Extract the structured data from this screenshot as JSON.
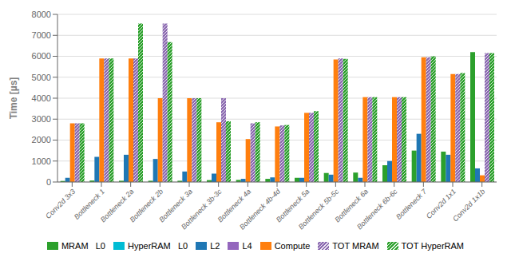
{
  "chart_data": {
    "type": "bar",
    "categories": [
      "Conv2d 3x3",
      "Bottleneck 1",
      "Bottleneck 2a",
      "Bottleneck 2b",
      "Bottleneck 3a",
      "Bottleneck 3b-3c",
      "Bottleneck 4a",
      "Bottleneck 4b-4d",
      "Bottleneck 5a",
      "Bottleneck 5b-5c",
      "Bottleneck 6a",
      "Bottleneck 6b-6c",
      "Bottleneck 7",
      "Conv2d 1x1",
      "Conv2d 1x1b"
    ],
    "series": [
      {
        "name": "MRAM   L0",
        "color": "#2ca02c",
        "values": [
          50,
          70,
          60,
          60,
          60,
          90,
          100,
          150,
          200,
          430,
          450,
          800,
          1500,
          1450,
          6200
        ]
      },
      {
        "name": "HyperRAM   L0",
        "color": "#00bcd4",
        "values": [
          null,
          null,
          null,
          null,
          null,
          null,
          null,
          null,
          null,
          null,
          null,
          null,
          null,
          null,
          null
        ]
      },
      {
        "name": "L2",
        "color": "#1f77b4",
        "values": [
          200,
          1200,
          1300,
          1100,
          500,
          400,
          150,
          220,
          200,
          350,
          200,
          1000,
          2300,
          1300,
          650
        ]
      },
      {
        "name": "L4",
        "color": "#9467bd",
        "values": [
          null,
          null,
          null,
          null,
          null,
          null,
          null,
          null,
          null,
          null,
          null,
          null,
          null,
          null,
          null
        ]
      },
      {
        "name": "Compute",
        "color": "#ff7f0e",
        "values": [
          2800,
          5900,
          5900,
          4000,
          4000,
          2850,
          2050,
          2650,
          3300,
          5850,
          4050,
          4050,
          5950,
          5150,
          320
        ]
      },
      {
        "name": "TOT MRAM",
        "color": "#8c6bb1",
        "line_style": "hatch",
        "values": [
          2800,
          5900,
          5900,
          7560,
          4000,
          4000,
          2800,
          2700,
          3300,
          5900,
          4050,
          4050,
          5950,
          5150,
          6150
        ]
      },
      {
        "name": "TOT HyperRAM",
        "color": "#2ca02c",
        "line_style": "hatch",
        "values": [
          2800,
          5900,
          7560,
          6680,
          4000,
          2900,
          2850,
          2720,
          3380,
          5880,
          4050,
          4050,
          6000,
          5200,
          6150
        ]
      }
    ],
    "ylabel": "Time [µs]",
    "ylim": [
      0,
      8000
    ],
    "yticks": [
      0,
      1000,
      2000,
      3000,
      4000,
      5000,
      6000,
      7000,
      8000
    ],
    "grid": true,
    "legend": "bottom"
  }
}
